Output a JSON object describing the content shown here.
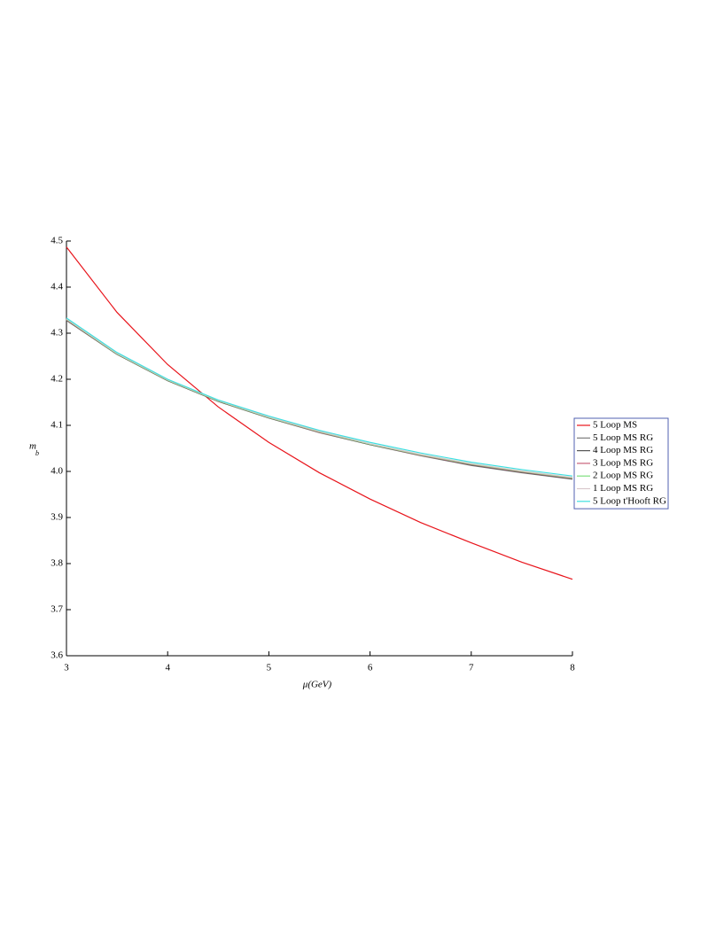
{
  "chart_data": {
    "type": "line",
    "xlabel": "μ(GeV)",
    "ylabel": "m",
    "ylabel_subscript": "b",
    "x": [
      3,
      3.5,
      4,
      4.5,
      5,
      5.5,
      6,
      6.5,
      7,
      7.5,
      8
    ],
    "series": [
      {
        "name": "5 Loop MS",
        "color": "#e8141b",
        "values": [
          4.487,
          4.345,
          4.232,
          4.14,
          4.063,
          3.997,
          3.94,
          3.889,
          3.845,
          3.803,
          3.766
        ]
      },
      {
        "name": "5 Loop MS RG",
        "color": "#7a7a7a",
        "values": [
          4.328,
          4.254,
          4.197,
          4.152,
          4.116,
          4.084,
          4.058,
          4.034,
          4.013,
          3.997,
          3.983
        ]
      },
      {
        "name": "4 Loop MS RG",
        "color": "#555555",
        "values": [
          4.328,
          4.254,
          4.197,
          4.152,
          4.116,
          4.085,
          4.058,
          4.035,
          4.014,
          3.998,
          3.984
        ]
      },
      {
        "name": "3 Loop MS RG",
        "color": "#c8607a",
        "values": [
          4.329,
          4.255,
          4.198,
          4.153,
          4.117,
          4.085,
          4.059,
          4.035,
          4.015,
          3.999,
          3.985
        ]
      },
      {
        "name": "2 Loop MS RG",
        "color": "#7ee07e",
        "values": [
          4.33,
          4.255,
          4.198,
          4.153,
          4.117,
          4.086,
          4.059,
          4.036,
          4.016,
          4.0,
          3.986
        ]
      },
      {
        "name": "1 Loop MS RG",
        "color": "#d8c8cc",
        "values": [
          4.331,
          4.256,
          4.199,
          4.154,
          4.118,
          4.087,
          4.06,
          4.037,
          4.017,
          4.001,
          3.987
        ]
      },
      {
        "name": "5 Loop t'Hooft RG",
        "color": "#3ee0e0",
        "values": [
          4.333,
          4.258,
          4.2,
          4.155,
          4.12,
          4.089,
          4.063,
          4.04,
          4.02,
          4.004,
          3.99
        ]
      }
    ],
    "xlim": [
      3,
      8
    ],
    "xticks": [
      3,
      4,
      5,
      6,
      7,
      8
    ],
    "ylim": [
      3.6,
      4.5
    ],
    "yticks": [
      3.6,
      3.7,
      3.8,
      3.9,
      {
        "value": 4,
        "label": "4.0"
      },
      4.1,
      4.2,
      4.3,
      4.4,
      4.5
    ],
    "grid": false,
    "legend": "right"
  }
}
